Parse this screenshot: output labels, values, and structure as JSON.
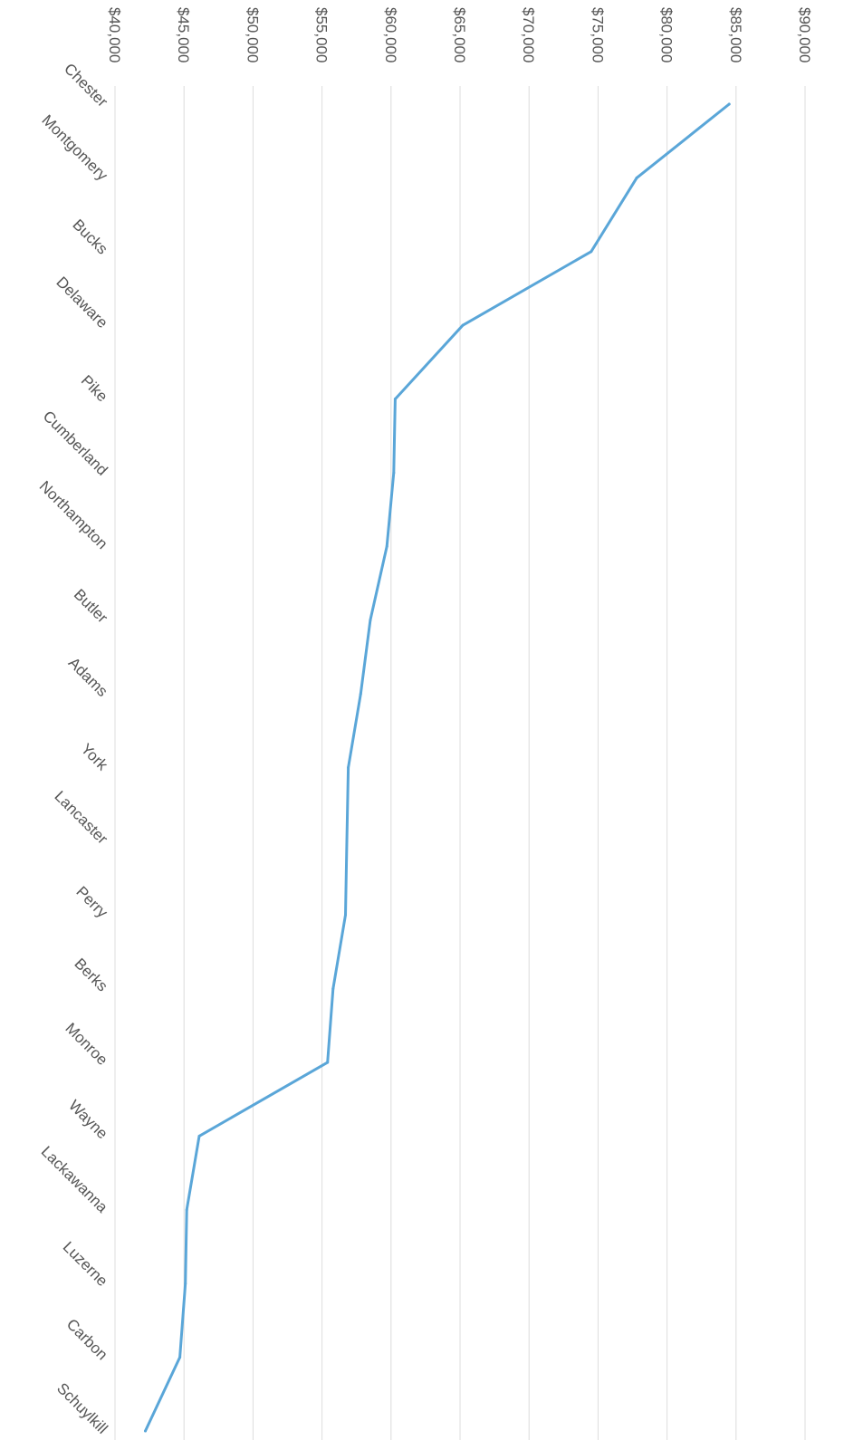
{
  "chart_data": {
    "type": "line",
    "orientation": "rotated-90-clockwise",
    "title": "",
    "xlabel": "",
    "ylabel": "",
    "grid": true,
    "legend": "none",
    "categories": [
      "Chester",
      "Montgomery",
      "Bucks",
      "Delaware",
      "Pike",
      "Cumberland",
      "Northampton",
      "Butler",
      "Adams",
      "York",
      "Lancaster",
      "Perry",
      "Berks",
      "Monroe",
      "Wayne",
      "Lackawanna",
      "Luzerne",
      "Carbon",
      "Schuylkill"
    ],
    "values": [
      84500,
      77800,
      74500,
      65200,
      60300,
      60200,
      59700,
      58500,
      57800,
      56900,
      56800,
      56700,
      55800,
      55400,
      46100,
      45200,
      45100,
      44700,
      42200
    ],
    "ylim": [
      40000,
      90000
    ],
    "yticks": [
      40000,
      45000,
      50000,
      55000,
      60000,
      65000,
      70000,
      75000,
      80000,
      85000,
      90000
    ],
    "ytick_labels": [
      "$40,000",
      "$45,000",
      "$50,000",
      "$55,000",
      "$60,000",
      "$65,000",
      "$70,000",
      "$75,000",
      "$80,000",
      "$85,000",
      "$90,000"
    ],
    "colors": {
      "line": "#5aa6d8",
      "grid": "#dcdcdc",
      "text": "#555555"
    }
  }
}
